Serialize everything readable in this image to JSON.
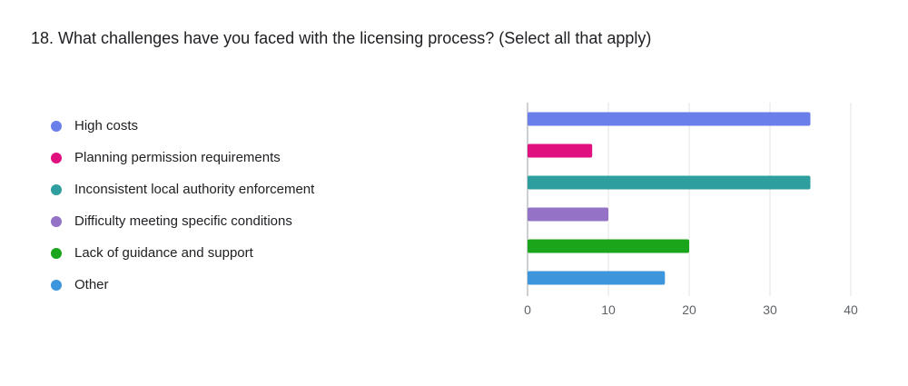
{
  "question": {
    "title": "18. What challenges have you faced with the licensing process? (Select all that apply)"
  },
  "chart_data": {
    "type": "bar",
    "orientation": "horizontal",
    "categories": [
      "High costs",
      "Planning permission requirements",
      "Inconsistent local authority enforcement",
      "Difficulty meeting specific conditions",
      "Lack of guidance and support",
      "Other"
    ],
    "values": [
      35,
      8,
      35,
      10,
      20,
      17
    ],
    "colors": [
      "#6b7fea",
      "#e0117f",
      "#2e9e9e",
      "#9473c7",
      "#1aa51a",
      "#3d95dc"
    ],
    "xlim": [
      0,
      40
    ],
    "xticks": [
      0,
      10,
      20,
      30,
      40
    ],
    "grid": true,
    "legend": "left"
  }
}
